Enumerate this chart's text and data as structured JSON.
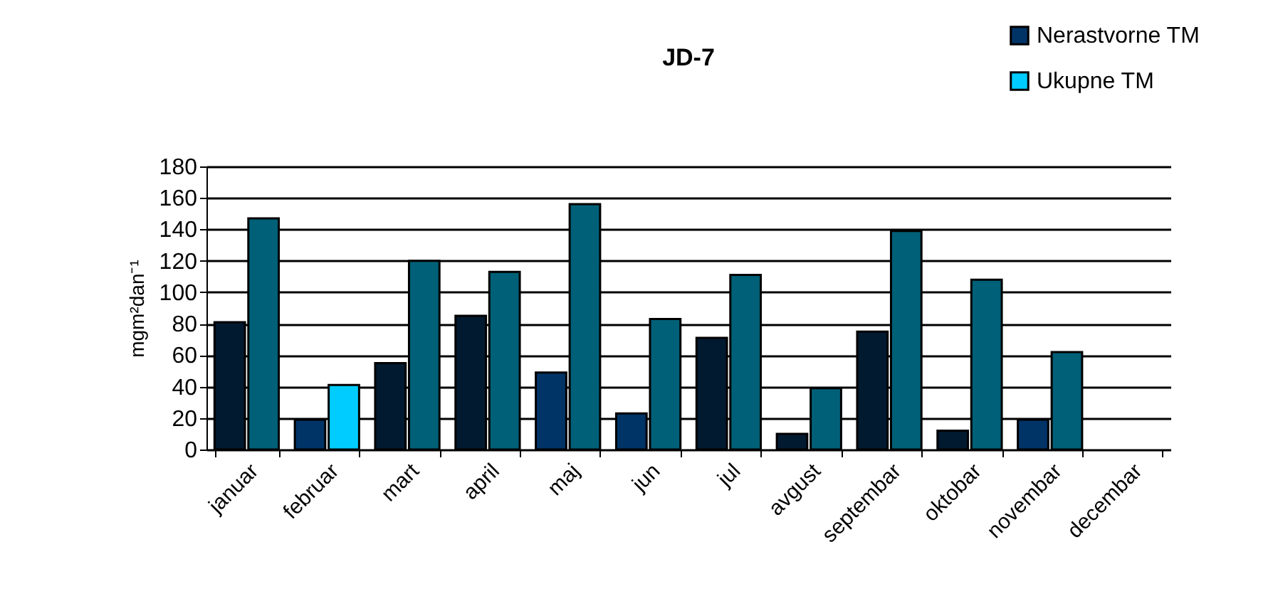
{
  "chart_data": {
    "type": "bar",
    "title": "JD-7",
    "ylabel": "mgm²dan⁻¹",
    "categories": [
      "januar",
      "februar",
      "mart",
      "april",
      "maj",
      "jun",
      "jul",
      "avgust",
      "septembar",
      "oktobar",
      "novembar",
      "decembar"
    ],
    "series": [
      {
        "name": "Nerastvorne TM",
        "color": "#003366",
        "values": [
          81,
          19,
          55,
          85,
          49,
          23,
          71,
          10,
          75,
          12,
          19,
          null
        ],
        "colors": [
          "#021a30",
          "#003366",
          "#021a30",
          "#021a30",
          "#003366",
          "#003366",
          "#021a30",
          "#021a30",
          "#021a30",
          "#021a30",
          "#003366",
          "#021a30"
        ]
      },
      {
        "name": "Ukupne TM",
        "color": "#00ccff",
        "values": [
          147,
          41,
          120,
          113,
          156,
          83,
          111,
          39,
          139,
          108,
          62,
          null
        ],
        "colors": [
          "#006077",
          "#00ccff",
          "#006077",
          "#006077",
          "#006077",
          "#006077",
          "#006077",
          "#006077",
          "#006077",
          "#006077",
          "#006077",
          "#006077"
        ]
      }
    ],
    "ylim": [
      0,
      180
    ],
    "yticks": [
      0,
      20,
      40,
      60,
      80,
      100,
      120,
      140,
      160,
      180
    ],
    "grid": "y",
    "legend": "top right"
  }
}
